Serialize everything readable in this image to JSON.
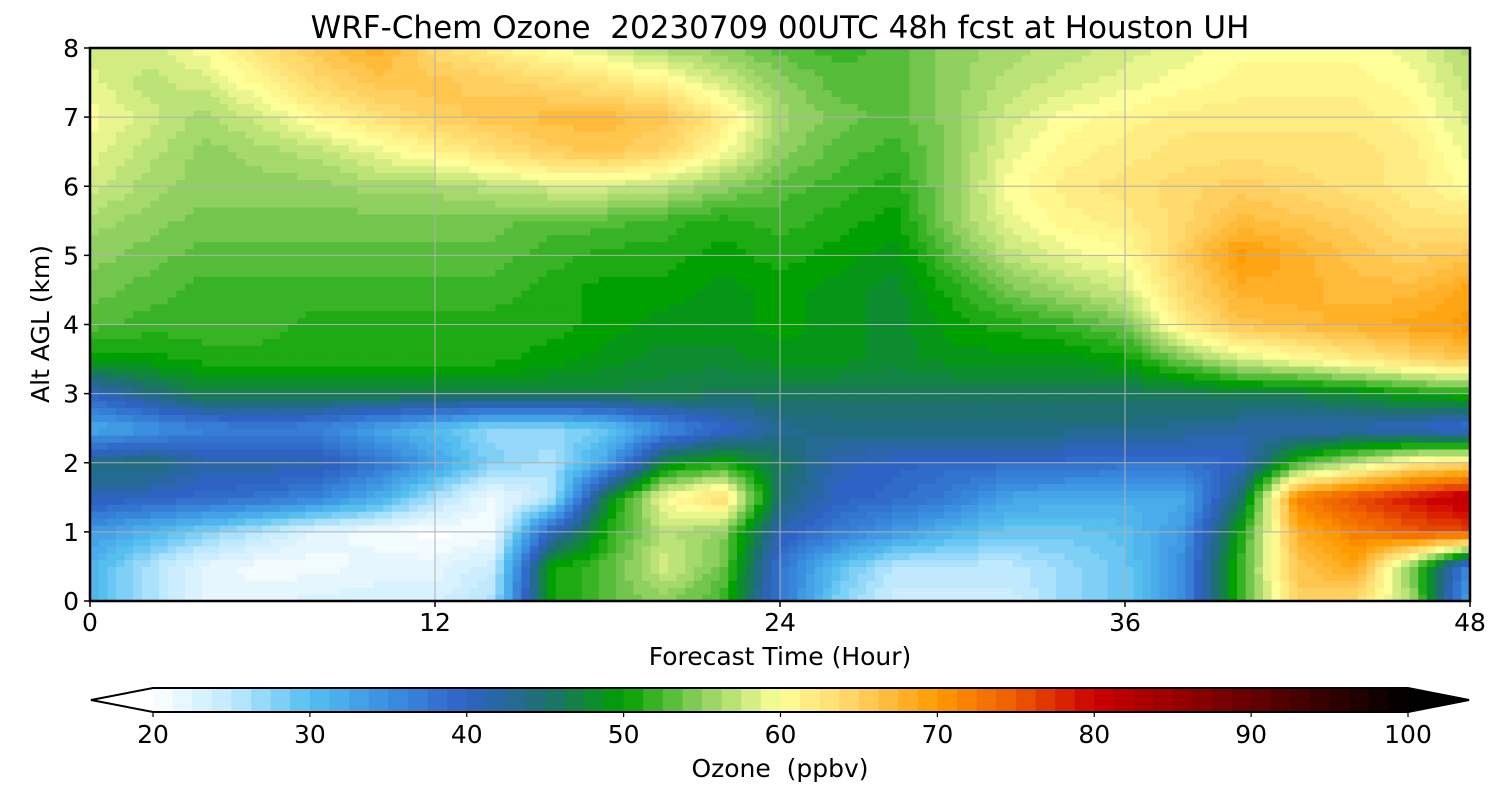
{
  "chart_data": {
    "type": "heatmap",
    "title": "WRF-Chem Ozone  20230709 00UTC 48h fcst at Houston UH",
    "xlabel": "Forecast Time (Hour)",
    "ylabel": "Alt AGL (km)",
    "xlim": [
      0,
      48
    ],
    "ylim": [
      0,
      8
    ],
    "xticks": [
      0,
      12,
      24,
      36,
      48
    ],
    "yticks": [
      0,
      1,
      2,
      3,
      4,
      5,
      6,
      7,
      8
    ],
    "grid": true,
    "colorbar": {
      "label": "Ozone  (ppbv)",
      "min": 20,
      "max": 100,
      "ticks": [
        20,
        30,
        40,
        50,
        60,
        70,
        80,
        90,
        100
      ],
      "extend": "both",
      "orientation": "horizontal",
      "colors": [
        {
          "v": 20,
          "c": "#ffffff"
        },
        {
          "v": 25,
          "c": "#bfe9ff"
        },
        {
          "v": 30,
          "c": "#55bff0"
        },
        {
          "v": 35,
          "c": "#3a8fe0"
        },
        {
          "v": 40,
          "c": "#2e62c4"
        },
        {
          "v": 45,
          "c": "#1e6f72"
        },
        {
          "v": 50,
          "c": "#00a000"
        },
        {
          "v": 55,
          "c": "#8fd060"
        },
        {
          "v": 60,
          "c": "#ffff99"
        },
        {
          "v": 65,
          "c": "#ffd060"
        },
        {
          "v": 70,
          "c": "#ff9a00"
        },
        {
          "v": 75,
          "c": "#ee5a00"
        },
        {
          "v": 80,
          "c": "#cc0000"
        },
        {
          "v": 90,
          "c": "#660000"
        },
        {
          "v": 100,
          "c": "#000000"
        }
      ]
    },
    "x_hours": [
      0,
      2,
      4,
      6,
      8,
      10,
      12,
      14,
      16,
      18,
      20,
      22,
      24,
      26,
      28,
      30,
      32,
      34,
      36,
      38,
      40,
      42,
      44,
      46,
      48
    ],
    "y_km": [
      0,
      0.5,
      1,
      1.5,
      2,
      2.5,
      3,
      3.5,
      4,
      4.5,
      5,
      5.5,
      6,
      6.5,
      7,
      7.5,
      8
    ],
    "ozone_ppbv_rows_by_altitude": [
      [
        31,
        26,
        22,
        22,
        23,
        23,
        23,
        26,
        50,
        53,
        55,
        52,
        38,
        28,
        24,
        24,
        24,
        27,
        29,
        35,
        52,
        65,
        64,
        56,
        32
      ],
      [
        31,
        26,
        22,
        21,
        21,
        22,
        22,
        24,
        50,
        53,
        58,
        54,
        38,
        30,
        25,
        25,
        25,
        27,
        29,
        35,
        52,
        66,
        69,
        54,
        35
      ],
      [
        34,
        31,
        28,
        25,
        22,
        21,
        20,
        21,
        40,
        51,
        57,
        55,
        41,
        37,
        34,
        31,
        29,
        29,
        30,
        34,
        50,
        68,
        72,
        75,
        76
      ],
      [
        41,
        40,
        39,
        38,
        36,
        32,
        26,
        21,
        25,
        48,
        60,
        64,
        45,
        40,
        39,
        37,
        33,
        32,
        32,
        32,
        45,
        72,
        76,
        79,
        82
      ],
      [
        44,
        45,
        42,
        42,
        41,
        38,
        33,
        28,
        26,
        33,
        48,
        51,
        46,
        41,
        40,
        39,
        39,
        39,
        38,
        38,
        40,
        52,
        57,
        62,
        64
      ],
      [
        32,
        34,
        36,
        37,
        36,
        33,
        30,
        27,
        27,
        29,
        35,
        39,
        43,
        44,
        44,
        44,
        44,
        44,
        44,
        43,
        42,
        41,
        41,
        40,
        38
      ],
      [
        40,
        44,
        47,
        47,
        47,
        47,
        47,
        47,
        47,
        47,
        47,
        46,
        46,
        46,
        46,
        46,
        46,
        46,
        46,
        46,
        47,
        47,
        48,
        50,
        51
      ],
      [
        50,
        50,
        51,
        51,
        51,
        51,
        51,
        51,
        50,
        49,
        48,
        48,
        49,
        49,
        48,
        49,
        49,
        49,
        50,
        54,
        58,
        60,
        62,
        64,
        66
      ],
      [
        53,
        52,
        52,
        52,
        51,
        51,
        51,
        51,
        51,
        50,
        49,
        49,
        50,
        49,
        48,
        50,
        51,
        52,
        54,
        62,
        66,
        67,
        68,
        69,
        70
      ],
      [
        54,
        53,
        52,
        52,
        52,
        52,
        52,
        52,
        51,
        50,
        50,
        49,
        50,
        49,
        48,
        51,
        54,
        56,
        58,
        64,
        68,
        68,
        67,
        67,
        69
      ],
      [
        55,
        54,
        53,
        53,
        53,
        53,
        53,
        53,
        52,
        51,
        51,
        50,
        51,
        50,
        49,
        53,
        57,
        59,
        60,
        65,
        70,
        68,
        66,
        65,
        66
      ],
      [
        56,
        55,
        54,
        54,
        54,
        54,
        54,
        54,
        53,
        53,
        52,
        51,
        52,
        51,
        50,
        55,
        59,
        61,
        62,
        64,
        67,
        66,
        65,
        63,
        63
      ],
      [
        58,
        56,
        55,
        55,
        55,
        56,
        56,
        57,
        58,
        58,
        57,
        55,
        53,
        52,
        51,
        55,
        60,
        62,
        63,
        64,
        65,
        64,
        63,
        62,
        60
      ],
      [
        59,
        57,
        55,
        56,
        57,
        59,
        61,
        63,
        65,
        66,
        64,
        60,
        55,
        53,
        52,
        55,
        59,
        61,
        62,
        63,
        63,
        63,
        63,
        62,
        59
      ],
      [
        60,
        58,
        56,
        58,
        61,
        63,
        65,
        66,
        67,
        67,
        66,
        62,
        56,
        54,
        53,
        55,
        58,
        60,
        61,
        62,
        62,
        62,
        62,
        61,
        58
      ],
      [
        59,
        57,
        58,
        61,
        64,
        66,
        66,
        65,
        64,
        63,
        61,
        58,
        55,
        53,
        53,
        55,
        57,
        58,
        59,
        60,
        61,
        61,
        61,
        60,
        57
      ],
      [
        58,
        58,
        60,
        63,
        66,
        68,
        64,
        62,
        60,
        58,
        56,
        55,
        53,
        52,
        53,
        55,
        56,
        57,
        58,
        59,
        60,
        60,
        60,
        59,
        56
      ]
    ]
  }
}
